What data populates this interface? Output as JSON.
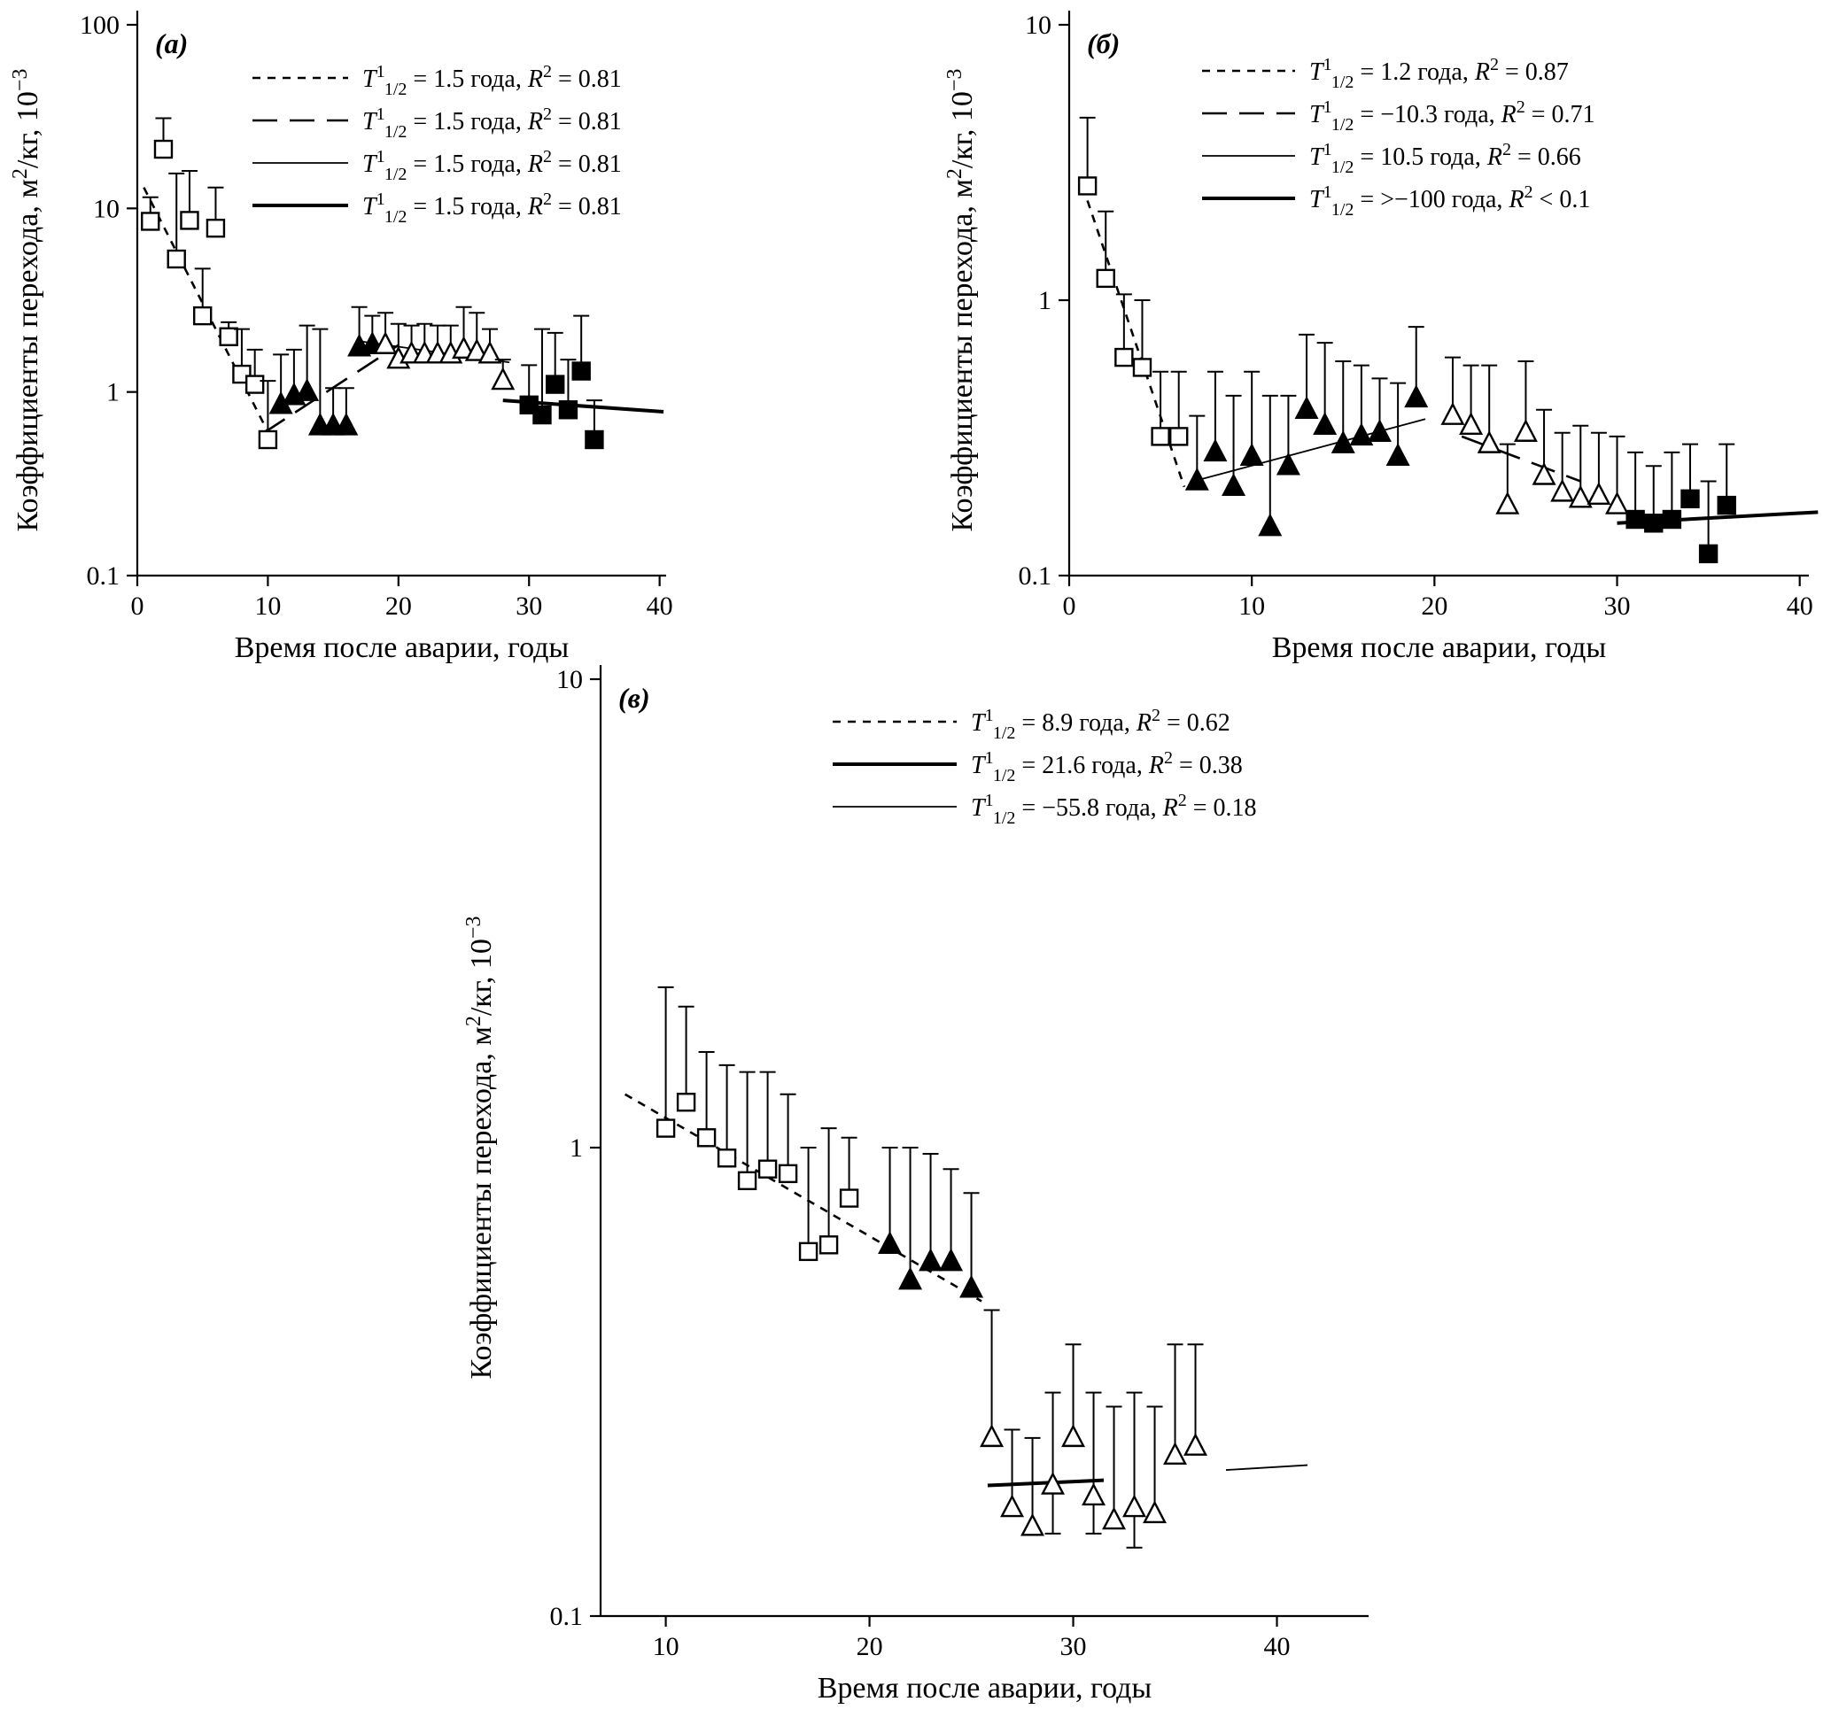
{
  "figure": {
    "background": "#ffffff",
    "ink_color": "#000000"
  },
  "chart_data": [
    {
      "id": "a",
      "type": "scatter",
      "panel_label": "(а)",
      "xlabel": "Время после аварии, годы",
      "ylabel": "Коэффициенты перехода, м²/кг, 10⁻³",
      "ylog": true,
      "xlim": [
        0,
        40.5
      ],
      "ylim": [
        0.1,
        100
      ],
      "xticks": [
        0,
        10,
        20,
        30,
        40
      ],
      "yticks": [
        0.1,
        1,
        10,
        100
      ],
      "ytick_labels": [
        "0.1",
        "1",
        "10",
        "100"
      ],
      "legend": [
        {
          "style": "dash-short",
          "halflife": "1.5 года",
          "r2_rel": "=",
          "r2": "0.81"
        },
        {
          "style": "dash-long",
          "halflife": "1.5 года",
          "r2_rel": "=",
          "r2": "0.81"
        },
        {
          "style": "solid-thin",
          "halflife": "1.5 года",
          "r2_rel": "=",
          "r2": "0.81"
        },
        {
          "style": "solid-thick",
          "halflife": "1.5 года",
          "r2_rel": "=",
          "r2": "0.81"
        }
      ],
      "series": [
        {
          "name": "open-squares",
          "marker": "square",
          "fill": "open",
          "points": [
            [
              1,
              8.5,
              11.5
            ],
            [
              2,
              21,
              31
            ],
            [
              3,
              5.3,
              15.5
            ],
            [
              4,
              8.6,
              16
            ],
            [
              5,
              2.6,
              4.7
            ],
            [
              6,
              7.8,
              13
            ],
            [
              7,
              2.0,
              2.4
            ],
            [
              8,
              1.25,
              2.2
            ],
            [
              9,
              1.1,
              1.7
            ],
            [
              10,
              0.55,
              1.15
            ]
          ]
        },
        {
          "name": "filled-triangles",
          "marker": "triangle",
          "fill": "filled",
          "points": [
            [
              11,
              0.85,
              1.6
            ],
            [
              12,
              0.95,
              1.7
            ],
            [
              13,
              1.0,
              2.3
            ],
            [
              14,
              0.65,
              2.2
            ],
            [
              15,
              0.65,
              1.05
            ],
            [
              16,
              0.65,
              1.05
            ],
            [
              17,
              1.75,
              2.9
            ],
            [
              18,
              1.8,
              2.6
            ]
          ]
        },
        {
          "name": "open-triangles",
          "marker": "triangle",
          "fill": "open",
          "points": [
            [
              19,
              1.8,
              2.7
            ],
            [
              20,
              1.5,
              2.35
            ],
            [
              21,
              1.6,
              2.3
            ],
            [
              22,
              1.6,
              2.35
            ],
            [
              23,
              1.6,
              2.3
            ],
            [
              24,
              1.6,
              2.3
            ],
            [
              25,
              1.7,
              2.9
            ],
            [
              26,
              1.65,
              2.7
            ],
            [
              27,
              1.6,
              2.2
            ],
            [
              28,
              1.15,
              1.5
            ]
          ]
        },
        {
          "name": "filled-squares",
          "marker": "square",
          "fill": "filled",
          "points": [
            [
              30,
              0.85,
              1.4
            ],
            [
              31,
              0.75,
              2.2
            ],
            [
              32,
              1.1,
              2.1
            ],
            [
              33,
              0.8,
              1.5
            ],
            [
              34,
              1.3,
              2.6
            ],
            [
              35,
              0.55,
              0.9
            ]
          ]
        }
      ],
      "fit_lines": [
        {
          "style": "dash-short",
          "x1": 0.5,
          "y1": 13,
          "x2": 10.3,
          "y2": 0.55
        },
        {
          "style": "dash-long",
          "x1": 9.7,
          "y1": 0.6,
          "x2": 20,
          "y2": 1.8
        },
        {
          "style": "solid-thin",
          "x1": 16.8,
          "y1": 1.9,
          "x2": 28.5,
          "y2": 1.45
        },
        {
          "style": "solid-thick",
          "x1": 28,
          "y1": 0.9,
          "x2": 40.3,
          "y2": 0.78
        }
      ]
    },
    {
      "id": "b",
      "type": "scatter",
      "panel_label": "(б)",
      "xlabel": "Время после аварии, годы",
      "ylabel": "Коэффициенты перехода, м²/кг, 10⁻³",
      "ylog": true,
      "xlim": [
        0,
        40.5
      ],
      "ylim": [
        0.1,
        10
      ],
      "xticks": [
        0,
        10,
        20,
        30,
        40
      ],
      "yticks": [
        0.1,
        1,
        10
      ],
      "ytick_labels": [
        "0.1",
        "1",
        "10"
      ],
      "legend": [
        {
          "style": "dash-short",
          "halflife": "1.2 года",
          "r2_rel": "=",
          "r2": "0.87"
        },
        {
          "style": "dash-long",
          "halflife": "−10.3 года",
          "r2_rel": "=",
          "r2": "0.71"
        },
        {
          "style": "solid-thin",
          "halflife": "10.5 года",
          "r2_rel": "=",
          "r2": "0.66"
        },
        {
          "style": "solid-thick",
          "halflife": ">−100 года",
          "r2_rel": "<",
          "r2": "0.1"
        }
      ],
      "series": [
        {
          "name": "open-squares",
          "marker": "square",
          "fill": "open",
          "points": [
            [
              1,
              2.6,
              4.6
            ],
            [
              2,
              1.2,
              2.1
            ],
            [
              3,
              0.62,
              1.05
            ],
            [
              4,
              0.57,
              1.0
            ],
            [
              5,
              0.32,
              0.55
            ],
            [
              6,
              0.32,
              0.55
            ]
          ]
        },
        {
          "name": "filled-triangles",
          "marker": "triangle",
          "fill": "filled",
          "points": [
            [
              7,
              0.22,
              0.38
            ],
            [
              8,
              0.28,
              0.55
            ],
            [
              9,
              0.21,
              0.45
            ],
            [
              10,
              0.27,
              0.55
            ],
            [
              11,
              0.15,
              0.45
            ],
            [
              12,
              0.25,
              0.45
            ],
            [
              13,
              0.4,
              0.75
            ],
            [
              14,
              0.35,
              0.7
            ],
            [
              15,
              0.3,
              0.6
            ],
            [
              16,
              0.32,
              0.58
            ],
            [
              17,
              0.33,
              0.52
            ],
            [
              18,
              0.27,
              0.5
            ],
            [
              19,
              0.44,
              0.8
            ]
          ]
        },
        {
          "name": "open-triangles",
          "marker": "triangle",
          "fill": "open",
          "points": [
            [
              21,
              0.38,
              0.62
            ],
            [
              22,
              0.35,
              0.58
            ],
            [
              23,
              0.3,
              0.58
            ],
            [
              24,
              0.18,
              0.3
            ],
            [
              25,
              0.33,
              0.6
            ],
            [
              26,
              0.23,
              0.4
            ],
            [
              27,
              0.2,
              0.33
            ],
            [
              28,
              0.19,
              0.35
            ],
            [
              29,
              0.195,
              0.33
            ],
            [
              30,
              0.18,
              0.32
            ]
          ]
        },
        {
          "name": "filled-squares",
          "marker": "square",
          "fill": "filled",
          "points": [
            [
              31,
              0.16,
              0.28
            ],
            [
              32,
              0.155,
              0.25
            ],
            [
              33,
              0.16,
              0.28
            ],
            [
              34,
              0.19,
              0.3
            ],
            [
              35,
              0.12,
              0.22
            ],
            [
              36,
              0.18,
              0.3
            ]
          ]
        }
      ],
      "fit_lines": [
        {
          "style": "dash-short",
          "x1": 1,
          "y1": 2.3,
          "x2": 6.3,
          "y2": 0.21
        },
        {
          "style": "solid-thin",
          "x1": 6.8,
          "y1": 0.22,
          "x2": 19.5,
          "y2": 0.37
        },
        {
          "style": "dash-long",
          "x1": 21.5,
          "y1": 0.32,
          "x2": 28,
          "y2": 0.22
        },
        {
          "style": "solid-thick",
          "x1": 30,
          "y1": 0.155,
          "x2": 41,
          "y2": 0.17
        }
      ]
    },
    {
      "id": "v",
      "type": "scatter",
      "panel_label": "(в)",
      "xlabel": "Время после аварии, годы",
      "ylabel": "Коэффициенты перехода, м²/кг, 10⁻³",
      "ylog": true,
      "xlim": [
        6.8,
        44.5
      ],
      "ylim": [
        0.1,
        10
      ],
      "xticks": [
        10,
        20,
        30,
        40
      ],
      "yticks": [
        0.1,
        1,
        10
      ],
      "ytick_labels": [
        "0.1",
        "1",
        "10"
      ],
      "legend": [
        {
          "style": "dash-short",
          "halflife": "8.9 года",
          "r2_rel": "=",
          "r2": "0.62"
        },
        {
          "style": "solid-thick",
          "halflife": "21.6 года",
          "r2_rel": "=",
          "r2": "0.38"
        },
        {
          "style": "solid-thin",
          "halflife": "−55.8 года",
          "r2_rel": "=",
          "r2": "0.18"
        }
      ],
      "series": [
        {
          "name": "open-squares",
          "marker": "square",
          "fill": "open",
          "points": [
            [
              10,
              1.1,
              2.2
            ],
            [
              11,
              1.25,
              2.0
            ],
            [
              12,
              1.05,
              1.6
            ],
            [
              13,
              0.95,
              1.5
            ],
            [
              14,
              0.85,
              1.45
            ],
            [
              15,
              0.9,
              1.45
            ],
            [
              16,
              0.88,
              1.3
            ],
            [
              17,
              0.6,
              1.0
            ],
            [
              18,
              0.62,
              1.1
            ],
            [
              19,
              0.78,
              1.05
            ]
          ]
        },
        {
          "name": "filled-triangles",
          "marker": "triangle",
          "fill": "filled",
          "points": [
            [
              21,
              0.62,
              1.0
            ],
            [
              22,
              0.52,
              1.0
            ],
            [
              23,
              0.57,
              0.97
            ],
            [
              24,
              0.57,
              0.9
            ],
            [
              25,
              0.5,
              0.8
            ]
          ]
        },
        {
          "name": "open-triangles",
          "marker": "triangle",
          "fill": "open",
          "points": [
            [
              26,
              0.24,
              0.45
            ],
            [
              27,
              0.17,
              0.25
            ],
            [
              28,
              0.155,
              0.24
            ],
            [
              29,
              0.19,
              0.3,
              0.15
            ],
            [
              30,
              0.24,
              0.38
            ],
            [
              31,
              0.18,
              0.3,
              0.15
            ],
            [
              32,
              0.16,
              0.28
            ],
            [
              33,
              0.17,
              0.3,
              0.14
            ],
            [
              34,
              0.165,
              0.28
            ],
            [
              35,
              0.22,
              0.38
            ],
            [
              36,
              0.23,
              0.38
            ]
          ]
        }
      ],
      "fit_lines": [
        {
          "style": "dash-short",
          "x1": 8,
          "y1": 1.3,
          "x2": 25.5,
          "y2": 0.47
        },
        {
          "style": "solid-thick",
          "x1": 25.8,
          "y1": 0.19,
          "x2": 31.5,
          "y2": 0.195
        },
        {
          "style": "solid-thin",
          "x1": 37.5,
          "y1": 0.205,
          "x2": 41.5,
          "y2": 0.21
        }
      ]
    }
  ]
}
